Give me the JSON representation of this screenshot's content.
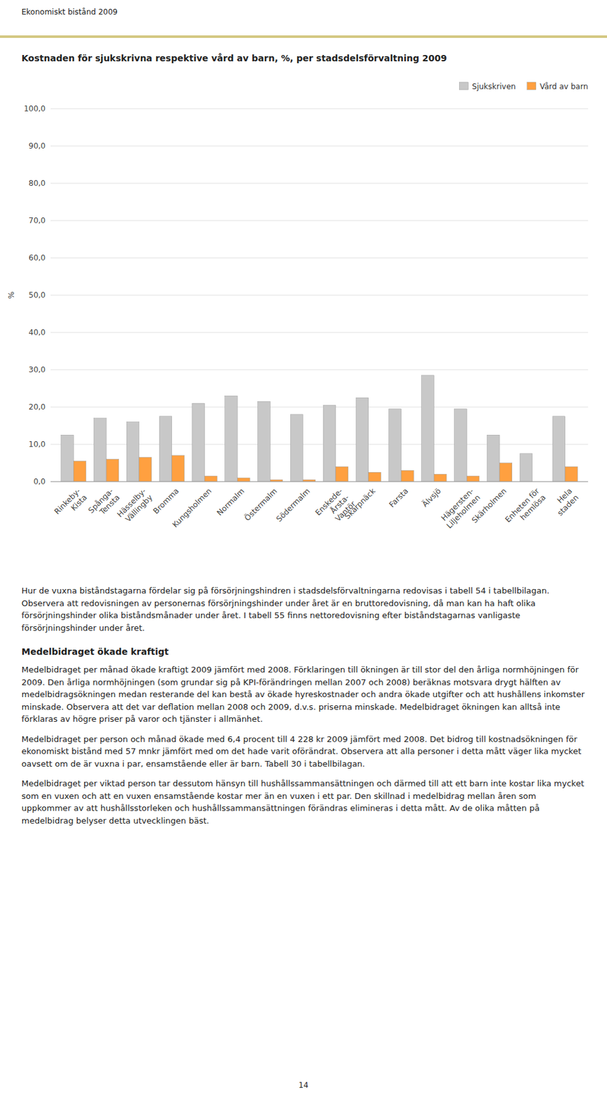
{
  "chart_data": {
    "type": "bar",
    "title": "Kostnaden för sjukskrivna respektive vård av barn, %, per stadsdelsförvaltning 2009",
    "ylabel": "%",
    "categories": [
      "Rinkeby-\nKista",
      "Spånga-\nTensta",
      "Hässelby-\nVällingby",
      "Bromma",
      "Kungsholmen",
      "Normalm",
      "Östermalm",
      "Södermalm",
      "Enskede-\nÅrsta-\nVantör",
      "Skarpnäck",
      "Farsta",
      "Älvsjö",
      "Hägersten-\nLiljeholmen",
      "Skärholmen",
      "Enheten för\nhemlösa",
      "Hela\nstaden"
    ],
    "series": [
      {
        "name": "Sjukskriven",
        "color": "#C8C8C8",
        "values": [
          12.5,
          17.0,
          16.0,
          17.5,
          21.0,
          23.0,
          21.5,
          18.0,
          20.5,
          22.5,
          19.5,
          28.5,
          19.5,
          12.5,
          7.5,
          17.5
        ]
      },
      {
        "name": "Vård av barn",
        "color": "#FFA040",
        "values": [
          5.5,
          6.0,
          6.5,
          7.0,
          1.5,
          1.0,
          0.5,
          0.5,
          4.0,
          2.5,
          3.0,
          2.0,
          1.5,
          5.0,
          0.0,
          4.0
        ]
      }
    ],
    "ylim": [
      0,
      100
    ],
    "yticks": [
      {
        "value": 0,
        "label": "0,0"
      },
      {
        "value": 10,
        "label": "10,0"
      },
      {
        "value": 20,
        "label": "20,0"
      },
      {
        "value": 30,
        "label": "30,0"
      },
      {
        "value": 40,
        "label": "40,0"
      },
      {
        "value": 50,
        "label": "50,0"
      },
      {
        "value": 60,
        "label": "60,0"
      },
      {
        "value": 70,
        "label": "70,0"
      },
      {
        "value": 80,
        "label": "80,0"
      },
      {
        "value": 90,
        "label": "90,0"
      },
      {
        "value": 100,
        "label": "100,0"
      }
    ],
    "grid": true,
    "legend": "upper right"
  },
  "page": {
    "header": "Ekonomiskt bistånd 2009",
    "header_line_color": "#D4C882",
    "paragraphs": [
      "Hur de vuxna biståndstagarna fördelar sig på försörjningshindren i stadsdelsförvaltningarna redovisas i tabell 54 i tabellbilagan. Observera att redovisningen av personernas försörjningshinder under året är en bruttoredovisning, då man kan ha haft olika försörjningshinder olika biståndsmånader under året. I tabell 55 finns nettoredovisning efter biståndstagarnas vanligaste försörjningshinder under året."
    ],
    "section_heading": "Medelbidraget ökade kraftigt",
    "section_paragraphs": [
      "Medelbidraget per månad ökade kraftigt 2009 jämfört med 2008. Förklaringen till ökningen är till stor del den årliga normhöjningen för 2009. Den årliga normhöjningen (som grundar sig på KPI-förändringen mellan 2007 och 2008) beräknas motsvara drygt hälften av medelbidragsökningen medan resterande del kan bestå av ökade hyreskostnader och andra ökade utgifter och att hushållens inkomster minskade. Observera att det var deflation mellan 2008 och 2009, d.v.s. priserna minskade. Medelbidraget ökningen kan alltså inte förklaras av högre priser på varor och tjänster i allmänhet.",
      "Medelbidraget per person och månad ökade med 6,4 procent till 4 228 kr 2009 jämfört med 2008. Det bidrog till kostnadsökningen för ekonomiskt bistånd med 57 mnkr jämfört med om det hade varit oförändrat. Observera att alla personer i detta mått väger lika mycket oavsett om de är vuxna i par, ensamstående eller är barn. Tabell 30 i tabellbilagan.",
      "Medelbidraget per viktad person tar dessutom hänsyn till hushållssammansättningen och därmed till att ett barn inte kostar lika mycket som en vuxen och att en vuxen ensamstående kostar mer än en vuxen i ett par. Den skillnad i medelbidrag mellan åren som uppkommer av att hushållsstorleken och hushållssammansättningen förändras elimineras i detta mått. Av de olika måtten på medelbidrag belyser detta utvecklingen bäst."
    ],
    "page_number": "14"
  }
}
